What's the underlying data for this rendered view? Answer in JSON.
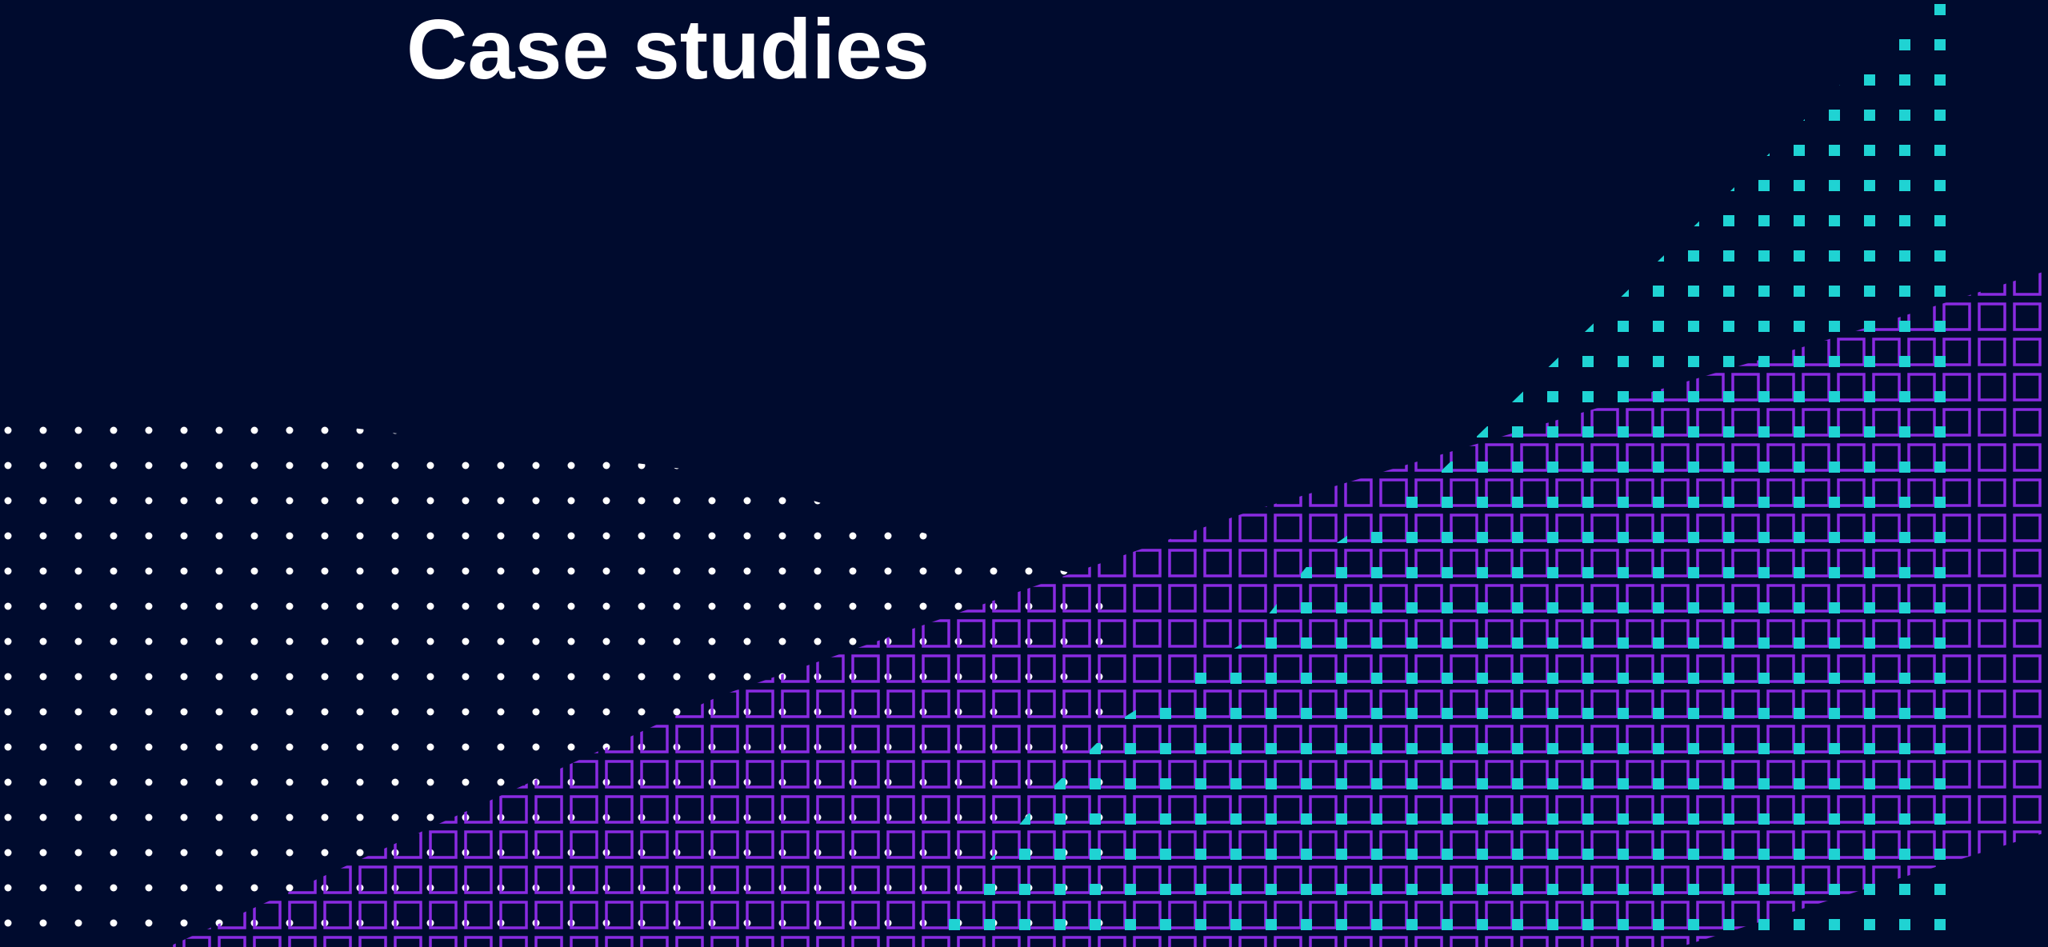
{
  "page": {
    "title": "Case studies"
  },
  "colors": {
    "background": "#000b2e",
    "title": "#ffffff",
    "white_dots": "#ffffff",
    "cyan_squares": "#1fd3d3",
    "purple_outlines": "#8a2be2"
  }
}
